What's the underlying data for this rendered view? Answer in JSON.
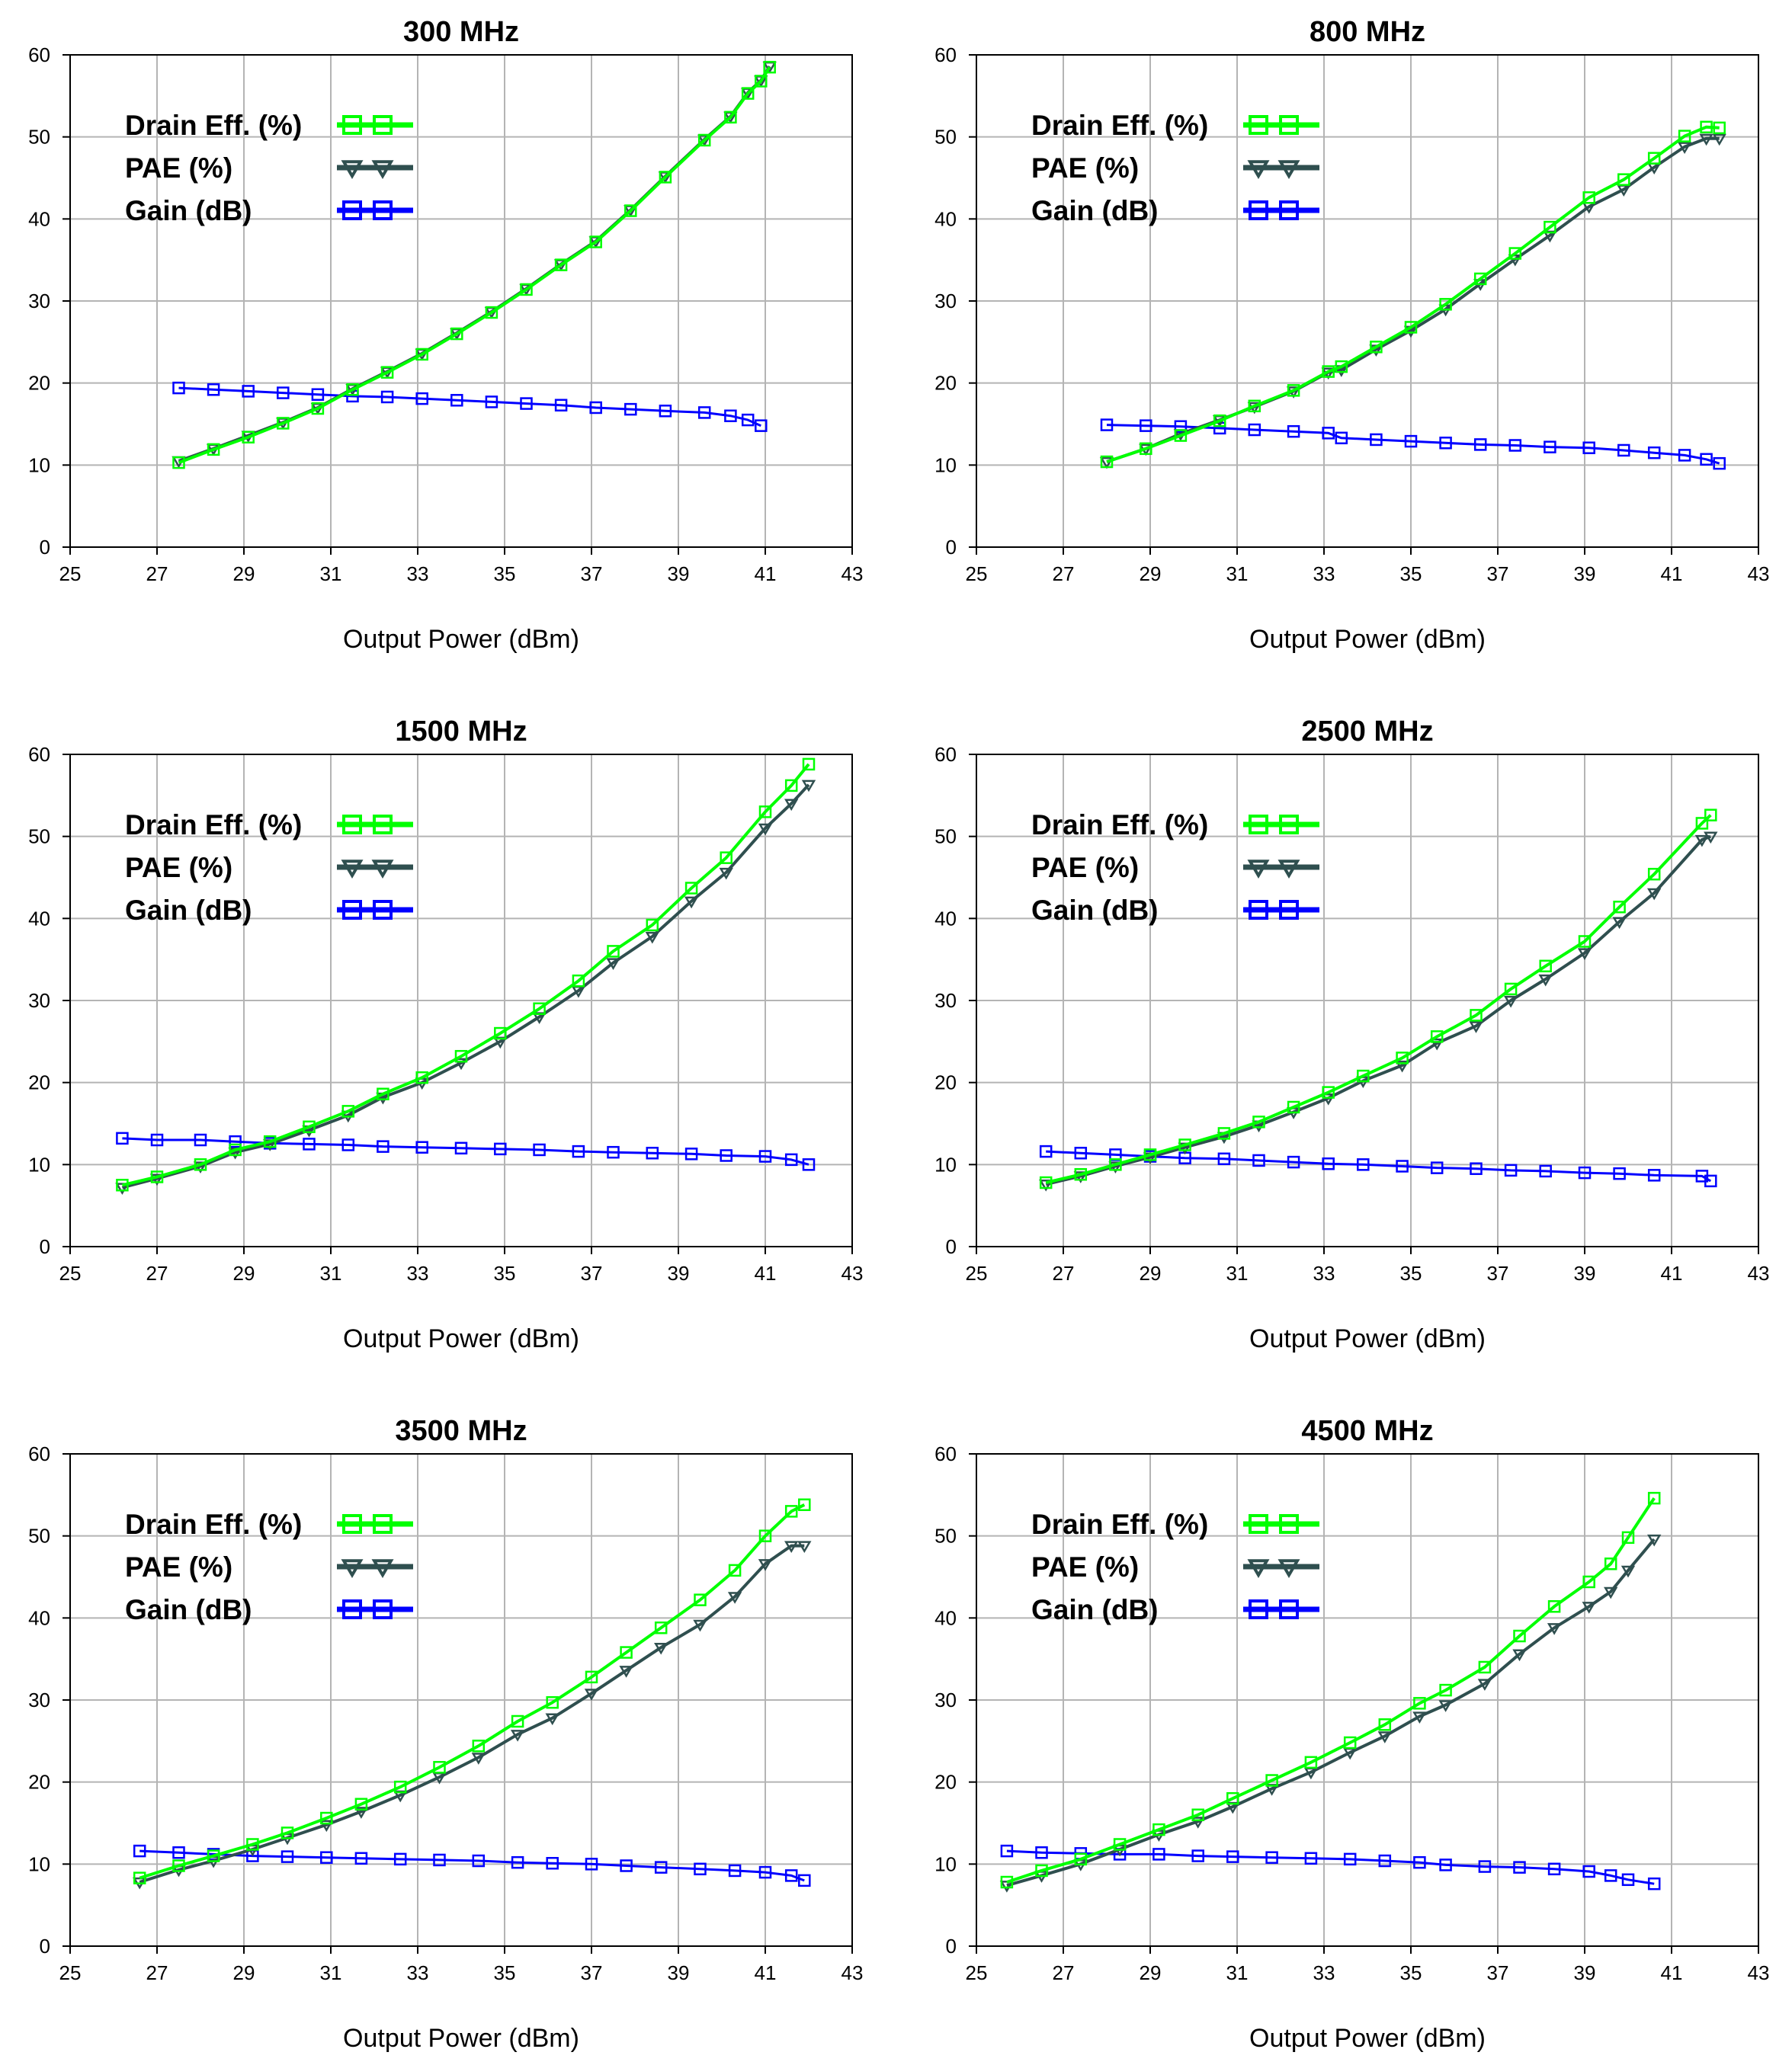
{
  "colors": {
    "drain": "#00ff00",
    "pae": "#2f4f4f",
    "gain": "#0000ff"
  },
  "legend": [
    "Drain Eff. (%)",
    "PAE (%)",
    "Gain (dB)"
  ],
  "chart_data": [
    {
      "type": "line",
      "title": "300 MHz",
      "xlabel": "Output Power (dBm)",
      "ylabel": "",
      "xlim": [
        25,
        43
      ],
      "ylim": [
        0,
        60
      ],
      "xticks": [
        25,
        27,
        29,
        31,
        33,
        35,
        37,
        39,
        41,
        43
      ],
      "yticks": [
        0,
        10,
        20,
        30,
        40,
        50,
        60
      ],
      "legend_position": "top-left",
      "series": [
        {
          "name": "Drain Eff. (%)",
          "marker": "square",
          "x": [
            27.5,
            28.3,
            29.1,
            29.9,
            30.7,
            31.5,
            32.3,
            33.1,
            33.9,
            34.7,
            35.5,
            36.3,
            37.1,
            37.9,
            38.7,
            39.6,
            40.2,
            40.6,
            40.9,
            41.1
          ],
          "y": [
            10.3,
            11.9,
            13.4,
            15.1,
            16.9,
            19.2,
            21.3,
            23.5,
            26.0,
            28.6,
            31.4,
            34.4,
            37.2,
            41.0,
            45.1,
            49.6,
            52.4,
            55.3,
            56.8,
            58.5
          ]
        },
        {
          "name": "PAE (%)",
          "marker": "triangle",
          "x": [
            27.5,
            28.3,
            29.1,
            29.9,
            30.7,
            31.5,
            32.3,
            33.1,
            33.9,
            34.7,
            35.5,
            36.3,
            37.1,
            37.9,
            38.7,
            39.6,
            40.2,
            40.6,
            40.9,
            41.1
          ],
          "y": [
            10.5,
            12.0,
            13.6,
            15.2,
            17.0,
            19.3,
            21.4,
            23.6,
            26.1,
            28.7,
            31.5,
            34.5,
            37.3,
            41.1,
            45.2,
            49.7,
            52.5,
            55.4,
            56.9,
            58.6
          ]
        },
        {
          "name": "Gain (dB)",
          "marker": "square",
          "x": [
            27.5,
            28.3,
            29.1,
            29.9,
            30.7,
            31.5,
            32.3,
            33.1,
            33.9,
            34.7,
            35.5,
            36.3,
            37.1,
            37.9,
            38.7,
            39.6,
            40.2,
            40.6,
            40.9
          ],
          "y": [
            19.4,
            19.2,
            19.0,
            18.8,
            18.6,
            18.4,
            18.3,
            18.1,
            17.9,
            17.7,
            17.5,
            17.3,
            17.0,
            16.8,
            16.6,
            16.4,
            16.0,
            15.5,
            14.8
          ]
        }
      ]
    },
    {
      "type": "line",
      "title": "800 MHz",
      "xlabel": "Output Power (dBm)",
      "ylabel": "",
      "xlim": [
        25,
        43
      ],
      "ylim": [
        0,
        60
      ],
      "xticks": [
        25,
        27,
        29,
        31,
        33,
        35,
        37,
        39,
        41,
        43
      ],
      "yticks": [
        0,
        10,
        20,
        30,
        40,
        50,
        60
      ],
      "legend_position": "top-left",
      "series": [
        {
          "name": "Drain Eff. (%)",
          "marker": "square",
          "x": [
            28.0,
            28.9,
            29.7,
            30.6,
            31.4,
            32.3,
            33.1,
            33.4,
            34.2,
            35.0,
            35.8,
            36.6,
            37.4,
            38.2,
            39.1,
            39.9,
            40.6,
            41.3,
            41.8,
            42.1
          ],
          "y": [
            10.4,
            12.0,
            13.6,
            15.4,
            17.2,
            19.1,
            21.4,
            22.0,
            24.4,
            26.8,
            29.6,
            32.7,
            35.8,
            39.0,
            42.6,
            44.8,
            47.4,
            50.1,
            51.2,
            51.1
          ]
        },
        {
          "name": "PAE (%)",
          "marker": "triangle",
          "x": [
            28.0,
            28.9,
            29.7,
            30.6,
            31.4,
            32.3,
            33.1,
            33.4,
            34.2,
            35.0,
            35.8,
            36.6,
            37.4,
            38.2,
            39.1,
            39.9,
            40.6,
            41.3,
            41.8,
            42.1
          ],
          "y": [
            10.4,
            12.0,
            13.8,
            15.5,
            17.1,
            19.0,
            21.3,
            21.6,
            24.1,
            26.4,
            29.0,
            32.1,
            35.1,
            38.0,
            41.5,
            43.6,
            46.3,
            48.8,
            49.8,
            49.8
          ]
        },
        {
          "name": "Gain (dB)",
          "marker": "square",
          "x": [
            28.0,
            28.9,
            29.7,
            30.6,
            31.4,
            32.3,
            33.1,
            33.4,
            34.2,
            35.0,
            35.8,
            36.6,
            37.4,
            38.2,
            39.1,
            39.9,
            40.6,
            41.3,
            41.8,
            42.1
          ],
          "y": [
            14.9,
            14.8,
            14.7,
            14.5,
            14.3,
            14.1,
            13.9,
            13.3,
            13.1,
            12.9,
            12.7,
            12.5,
            12.4,
            12.2,
            12.1,
            11.8,
            11.5,
            11.2,
            10.7,
            10.2
          ]
        }
      ]
    },
    {
      "type": "line",
      "title": "1500 MHz",
      "xlabel": "Output Power (dBm)",
      "ylabel": "",
      "xlim": [
        25,
        43
      ],
      "ylim": [
        0,
        60
      ],
      "xticks": [
        25,
        27,
        29,
        31,
        33,
        35,
        37,
        39,
        41,
        43
      ],
      "yticks": [
        0,
        10,
        20,
        30,
        40,
        50,
        60
      ],
      "legend_position": "top-left",
      "series": [
        {
          "name": "Drain Eff. (%)",
          "marker": "square",
          "x": [
            26.2,
            27.0,
            28.0,
            28.8,
            29.6,
            30.5,
            31.4,
            32.2,
            33.1,
            34.0,
            34.9,
            35.8,
            36.7,
            37.5,
            38.4,
            39.3,
            40.1,
            41.0,
            41.6,
            42.0
          ],
          "y": [
            7.5,
            8.5,
            10.0,
            11.8,
            12.8,
            14.6,
            16.5,
            18.6,
            20.6,
            23.2,
            26.0,
            29.0,
            32.4,
            36.0,
            39.2,
            43.7,
            47.4,
            53.0,
            56.2,
            58.8
          ]
        },
        {
          "name": "PAE (%)",
          "marker": "triangle",
          "x": [
            26.2,
            27.0,
            28.0,
            28.8,
            29.6,
            30.5,
            31.4,
            32.2,
            33.1,
            34.0,
            34.9,
            35.8,
            36.7,
            37.5,
            38.4,
            39.3,
            40.1,
            41.0,
            41.6,
            42.0
          ],
          "y": [
            7.2,
            8.3,
            9.8,
            11.5,
            12.5,
            14.2,
            16.0,
            18.2,
            20.0,
            22.4,
            25.0,
            28.0,
            31.2,
            34.6,
            37.8,
            42.1,
            45.6,
            51.0,
            54.0,
            56.3
          ]
        },
        {
          "name": "Gain (dB)",
          "marker": "square",
          "x": [
            26.2,
            27.0,
            28.0,
            28.8,
            29.6,
            30.5,
            31.4,
            32.2,
            33.1,
            34.0,
            34.9,
            35.8,
            36.7,
            37.5,
            38.4,
            39.3,
            40.1,
            41.0,
            41.6,
            42.0
          ],
          "y": [
            13.2,
            13.0,
            13.0,
            12.8,
            12.6,
            12.5,
            12.4,
            12.2,
            12.1,
            12.0,
            11.9,
            11.8,
            11.6,
            11.5,
            11.4,
            11.3,
            11.1,
            11.0,
            10.6,
            10.0
          ]
        }
      ]
    },
    {
      "type": "line",
      "title": "2500 MHz",
      "xlabel": "Output Power (dBm)",
      "ylabel": "",
      "xlim": [
        25,
        43
      ],
      "ylim": [
        0,
        60
      ],
      "xticks": [
        25,
        27,
        29,
        31,
        33,
        35,
        37,
        39,
        41,
        43
      ],
      "yticks": [
        0,
        10,
        20,
        30,
        40,
        50,
        60
      ],
      "legend_position": "top-left",
      "series": [
        {
          "name": "Drain Eff. (%)",
          "marker": "square",
          "x": [
            26.6,
            27.4,
            28.2,
            29.0,
            29.8,
            30.7,
            31.5,
            32.3,
            33.1,
            33.9,
            34.8,
            35.6,
            36.5,
            37.3,
            38.1,
            39.0,
            39.8,
            40.6,
            41.7,
            41.9
          ],
          "y": [
            7.8,
            8.8,
            10.0,
            11.2,
            12.4,
            13.8,
            15.2,
            17.0,
            18.8,
            20.8,
            23.0,
            25.6,
            28.2,
            31.4,
            34.2,
            37.2,
            41.4,
            45.4,
            51.6,
            52.6
          ]
        },
        {
          "name": "PAE (%)",
          "marker": "triangle",
          "x": [
            26.6,
            27.4,
            28.2,
            29.0,
            29.8,
            30.7,
            31.5,
            32.3,
            33.1,
            33.9,
            34.8,
            35.6,
            36.5,
            37.3,
            38.1,
            39.0,
            39.8,
            40.6,
            41.7,
            41.9
          ],
          "y": [
            7.6,
            8.6,
            9.8,
            10.9,
            12.1,
            13.4,
            14.8,
            16.4,
            18.1,
            20.2,
            22.1,
            24.8,
            26.9,
            30.0,
            32.6,
            35.8,
            39.6,
            43.1,
            49.6,
            50.0
          ]
        },
        {
          "name": "Gain (dB)",
          "marker": "square",
          "x": [
            26.6,
            27.4,
            28.2,
            29.0,
            29.8,
            30.7,
            31.5,
            32.3,
            33.1,
            33.9,
            34.8,
            35.6,
            36.5,
            37.3,
            38.1,
            39.0,
            39.8,
            40.6,
            41.7,
            41.9
          ],
          "y": [
            11.6,
            11.4,
            11.2,
            11.0,
            10.8,
            10.7,
            10.5,
            10.3,
            10.1,
            10.0,
            9.8,
            9.6,
            9.5,
            9.3,
            9.2,
            9.0,
            8.9,
            8.7,
            8.6,
            8.0
          ]
        }
      ]
    },
    {
      "type": "line",
      "title": "3500 MHz",
      "xlabel": "Output Power (dBm)",
      "ylabel": "",
      "xlim": [
        25,
        43
      ],
      "ylim": [
        0,
        60
      ],
      "xticks": [
        25,
        27,
        29,
        31,
        33,
        35,
        37,
        39,
        41,
        43
      ],
      "yticks": [
        0,
        10,
        20,
        30,
        40,
        50,
        60
      ],
      "legend_position": "top-left",
      "series": [
        {
          "name": "Drain Eff. (%)",
          "marker": "square",
          "x": [
            26.6,
            27.5,
            28.3,
            29.2,
            30.0,
            30.9,
            31.7,
            32.6,
            33.5,
            34.4,
            35.3,
            36.1,
            37.0,
            37.8,
            38.6,
            39.5,
            40.3,
            41.0,
            41.6,
            41.9
          ],
          "y": [
            8.3,
            9.8,
            11.0,
            12.4,
            13.8,
            15.6,
            17.3,
            19.4,
            21.8,
            24.4,
            27.4,
            29.7,
            32.8,
            35.8,
            38.8,
            42.2,
            45.8,
            50.0,
            53.0,
            53.8
          ]
        },
        {
          "name": "PAE (%)",
          "marker": "triangle",
          "x": [
            26.6,
            27.5,
            28.3,
            29.2,
            30.0,
            30.9,
            31.7,
            32.6,
            33.5,
            34.4,
            35.3,
            36.1,
            37.0,
            37.8,
            38.6,
            39.5,
            40.3,
            41.0,
            41.6,
            41.9
          ],
          "y": [
            7.8,
            9.3,
            10.4,
            11.8,
            13.2,
            14.8,
            16.4,
            18.4,
            20.6,
            23.0,
            25.8,
            27.8,
            30.8,
            33.6,
            36.4,
            39.2,
            42.6,
            46.6,
            48.8,
            48.8
          ]
        },
        {
          "name": "Gain (dB)",
          "marker": "square",
          "x": [
            26.6,
            27.5,
            28.3,
            29.2,
            30.0,
            30.9,
            31.7,
            32.6,
            33.5,
            34.4,
            35.3,
            36.1,
            37.0,
            37.8,
            38.6,
            39.5,
            40.3,
            41.0,
            41.6,
            41.9
          ],
          "y": [
            11.6,
            11.4,
            11.2,
            11.0,
            10.9,
            10.8,
            10.7,
            10.6,
            10.5,
            10.4,
            10.2,
            10.1,
            10.0,
            9.8,
            9.6,
            9.4,
            9.2,
            9.0,
            8.6,
            8.0
          ]
        }
      ]
    },
    {
      "type": "line",
      "title": "4500 MHz",
      "xlabel": "Output Power (dBm)",
      "ylabel": "",
      "xlim": [
        25,
        43
      ],
      "ylim": [
        0,
        60
      ],
      "xticks": [
        25,
        27,
        29,
        31,
        33,
        35,
        37,
        39,
        41,
        43
      ],
      "yticks": [
        0,
        10,
        20,
        30,
        40,
        50,
        60
      ],
      "legend_position": "top-left",
      "series": [
        {
          "name": "Drain Eff. (%)",
          "marker": "square",
          "x": [
            25.7,
            26.5,
            27.4,
            28.3,
            29.2,
            30.1,
            30.9,
            31.8,
            32.7,
            33.6,
            34.4,
            35.2,
            35.8,
            36.7,
            37.5,
            38.3,
            39.1,
            39.6,
            40.0,
            40.6
          ],
          "y": [
            7.8,
            9.2,
            10.6,
            12.4,
            14.2,
            16.0,
            18.0,
            20.2,
            22.4,
            24.8,
            27.0,
            29.6,
            31.2,
            34.0,
            37.8,
            41.4,
            44.4,
            46.6,
            49.8,
            54.6
          ]
        },
        {
          "name": "PAE (%)",
          "marker": "triangle",
          "x": [
            25.7,
            26.5,
            27.4,
            28.3,
            29.2,
            30.1,
            30.9,
            31.8,
            32.7,
            33.6,
            34.4,
            35.2,
            35.8,
            36.7,
            37.5,
            38.3,
            39.1,
            39.6,
            40.0,
            40.6
          ],
          "y": [
            7.4,
            8.6,
            10.0,
            11.8,
            13.6,
            15.2,
            17.0,
            19.2,
            21.2,
            23.6,
            25.6,
            28.0,
            29.4,
            32.0,
            35.6,
            38.8,
            41.4,
            43.2,
            45.8,
            49.6
          ]
        },
        {
          "name": "Gain (dB)",
          "marker": "square",
          "x": [
            25.7,
            26.5,
            27.4,
            28.3,
            29.2,
            30.1,
            30.9,
            31.8,
            32.7,
            33.6,
            34.4,
            35.2,
            35.8,
            36.7,
            37.5,
            38.3,
            39.1,
            39.6,
            40.0,
            40.6
          ],
          "y": [
            11.6,
            11.4,
            11.3,
            11.2,
            11.2,
            11.0,
            10.9,
            10.8,
            10.7,
            10.6,
            10.4,
            10.2,
            9.9,
            9.7,
            9.6,
            9.4,
            9.1,
            8.6,
            8.1,
            7.6
          ]
        }
      ]
    }
  ]
}
